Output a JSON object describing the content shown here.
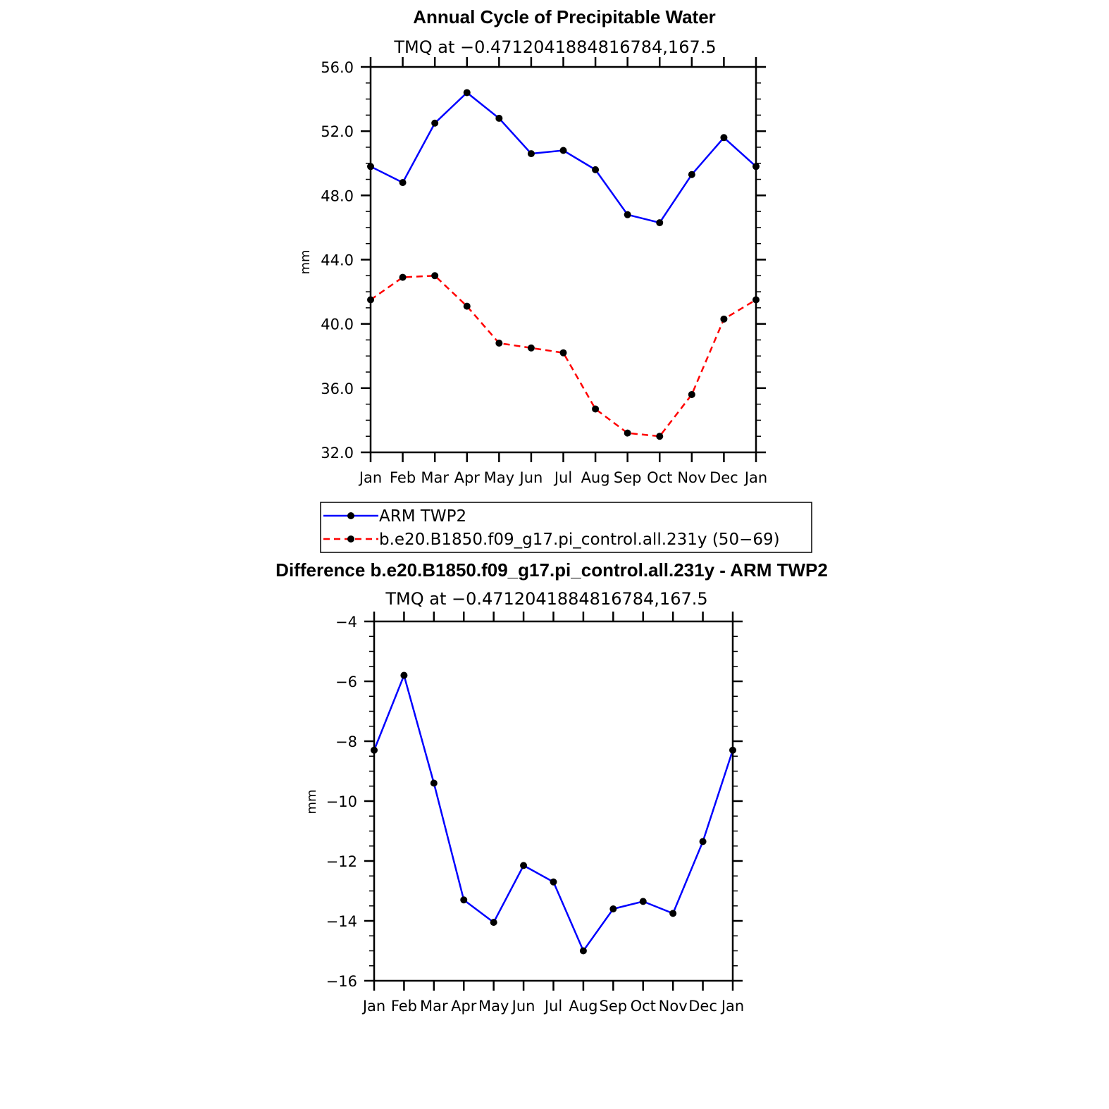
{
  "chart_data": [
    {
      "type": "line",
      "title": "Annual Cycle of Precipitable Water",
      "subtitle": "TMQ at −0.4712041884816784,167.5",
      "ylabel": "mm",
      "ylim": [
        32,
        56
      ],
      "yticks": [
        "32.0",
        "36.0",
        "40.0",
        "44.0",
        "48.0",
        "52.0",
        "56.0"
      ],
      "categories": [
        "Jan",
        "Feb",
        "Mar",
        "Apr",
        "May",
        "Jun",
        "Jul",
        "Aug",
        "Sep",
        "Oct",
        "Nov",
        "Dec",
        "Jan"
      ],
      "series": [
        {
          "name": "ARM  TWP2",
          "color": "#0000ff",
          "dash": "solid",
          "values": [
            49.8,
            48.8,
            52.5,
            54.4,
            52.8,
            50.6,
            50.8,
            49.6,
            46.8,
            46.3,
            49.3,
            51.6,
            49.8
          ]
        },
        {
          "name": "b.e20.B1850.f09_g17.pi_control.all.231y (50−69)",
          "color": "#ff0000",
          "dash": "dashed",
          "values": [
            41.5,
            42.9,
            43.0,
            41.1,
            38.8,
            38.5,
            38.2,
            34.7,
            33.2,
            33.0,
            35.6,
            40.3,
            41.5
          ]
        }
      ],
      "legend": "below"
    },
    {
      "type": "line",
      "title": "Difference b.e20.B1850.f09_g17.pi_control.all.231y - ARM TWP2",
      "subtitle": "TMQ at −0.4712041884816784,167.5",
      "ylabel": "mm",
      "ylim": [
        -16,
        -4
      ],
      "yticks": [
        "−16",
        "−14",
        "−12",
        "−10",
        "−8",
        "−6",
        "−4"
      ],
      "categories": [
        "Jan",
        "Feb",
        "Mar",
        "Apr",
        "May",
        "Jun",
        "Jul",
        "Aug",
        "Sep",
        "Oct",
        "Nov",
        "Dec",
        "Jan"
      ],
      "series": [
        {
          "color": "#0000ff",
          "dash": "solid",
          "values": [
            -8.3,
            -5.8,
            -9.4,
            -13.3,
            -14.05,
            -12.15,
            -12.7,
            -15.0,
            -13.6,
            -13.35,
            -13.75,
            -11.35,
            -8.3
          ]
        }
      ]
    }
  ]
}
